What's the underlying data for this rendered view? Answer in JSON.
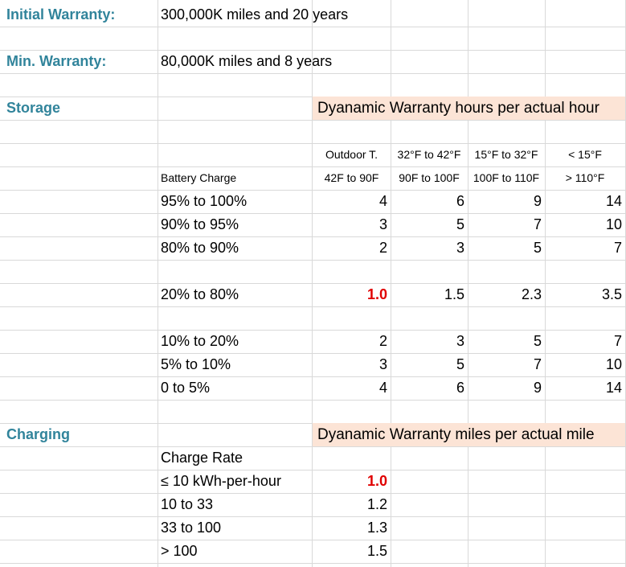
{
  "initial_warranty": {
    "label": "Initial Warranty:",
    "value": "300,000K miles and 20 years"
  },
  "min_warranty": {
    "label": "Min. Warranty:",
    "value": "80,000K miles and 8 years"
  },
  "storage": {
    "heading": "Storage",
    "banner": "Dyanamic Warranty hours per actual hour",
    "row_label_header": "Battery Charge",
    "temp_header_top": [
      "Outdoor T.",
      "32°F to 42°F",
      "15°F to 32°F",
      "< 15°F"
    ],
    "temp_header_bottom": [
      "42F to 90F",
      "90F to 100F",
      "100F to 110F",
      "> 110°F"
    ],
    "rows": [
      {
        "label": "95% to 100%",
        "values": [
          "4",
          "6",
          "9",
          "14"
        ]
      },
      {
        "label": "90% to 95%",
        "values": [
          "3",
          "5",
          "7",
          "10"
        ]
      },
      {
        "label": "80% to 90%",
        "values": [
          "2",
          "3",
          "5",
          "7"
        ]
      },
      {
        "label": "20% to 80%",
        "values": [
          "1.0",
          "1.5",
          "2.3",
          "3.5"
        ]
      },
      {
        "label": "10% to 20%",
        "values": [
          "2",
          "3",
          "5",
          "7"
        ]
      },
      {
        "label": "5% to 10%",
        "values": [
          "3",
          "5",
          "7",
          "10"
        ]
      },
      {
        "label": "0 to 5%",
        "values": [
          "4",
          "6",
          "9",
          "14"
        ]
      }
    ]
  },
  "charging": {
    "heading": "Charging",
    "banner": "Dyanamic Warranty miles per actual mile",
    "row_label_header": "Charge Rate",
    "rows": [
      {
        "label": "≤ 10 kWh-per-hour",
        "value": "1.0"
      },
      {
        "label": "10 to 33",
        "value": "1.2"
      },
      {
        "label": "33 to 100",
        "value": "1.3"
      },
      {
        "label": "> 100",
        "value": "1.5"
      }
    ]
  },
  "colors": {
    "heading": "#31849b",
    "highlight": "#e00000",
    "banner_bg": "#fce4d6",
    "gridline": "#d9d9d9"
  }
}
